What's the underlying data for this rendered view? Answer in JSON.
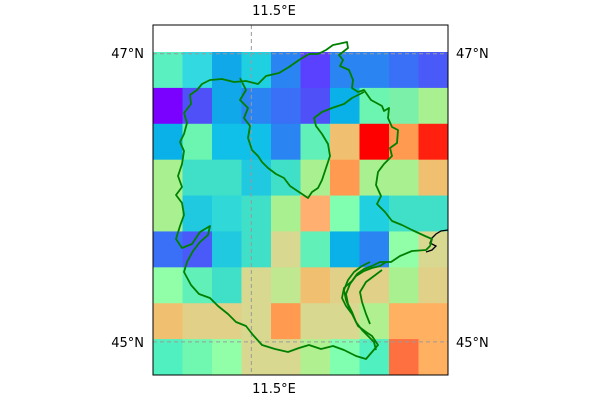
{
  "map": {
    "lon_ticks": [
      {
        "value": 11.5,
        "label": "11.5°E"
      }
    ],
    "lat_ticks": [
      {
        "value": 47,
        "label": "47°N"
      },
      {
        "value": 45,
        "label": "45°N"
      }
    ],
    "lon_range": [
      10.65,
      13.2
    ],
    "lat_range": [
      44.77,
      47.2
    ],
    "gridlines": true,
    "region_outline_color": "#008000",
    "coastline_color": "#000000",
    "colormap": "rainbow",
    "grid_cells": [
      [
        "#5bf0c0",
        "#33d9e0",
        "#10a8e8",
        "#1fd0e0",
        "#2a84f2",
        "#5a40ff",
        "#2a84f2",
        "#2a84f2",
        "#3a70f8",
        "#4a5af8"
      ],
      [
        "#7a00ff",
        "#5050f8",
        "#10a8e8",
        "#2a84f2",
        "#3a70f8",
        "#5050f8",
        "#0ab0e8",
        "#6cf5b0",
        "#7af0a8",
        "#a8f090"
      ],
      [
        "#0ab0e8",
        "#6cf5b0",
        "#10c0e8",
        "#10c0e8",
        "#2a84f2",
        "#60f0b8",
        "#f0c070",
        "#ff0000",
        "#ff9a50",
        "#ff2010"
      ],
      [
        "#a8f090",
        "#40e0c8",
        "#40e0c8",
        "#20c8e0",
        "#40e0c8",
        "#a8f090",
        "#ff9a50",
        "#a8f090",
        "#a8f090",
        "#f0c070"
      ],
      [
        "#a8f090",
        "#20c8e0",
        "#30d8d8",
        "#40e0c8",
        "#a8f090",
        "#ffb070",
        "#80ffb0",
        "#20d0e0",
        "#40e0c8",
        "#40e0c8"
      ],
      [
        "#3a70f8",
        "#4a5af8",
        "#20c8e0",
        "#40e0c8",
        "#d8d890",
        "#60f0b8",
        "#0ab0e8",
        "#2a84f2",
        "#90ffa8",
        "#d8d890"
      ],
      [
        "#90ffa8",
        "#60f0b8",
        "#40e0c8",
        "#d8d890",
        "#c0e890",
        "#f0c070",
        "#e0d088",
        "#e0d088",
        "#a8f090",
        "#e0d088"
      ],
      [
        "#f0c070",
        "#e0d088",
        "#e0d088",
        "#d8d890",
        "#ff9a50",
        "#d8d890",
        "#d8d890",
        "#b0f090",
        "#ffb060",
        "#ffb060"
      ],
      [
        "#50f0c0",
        "#70f8b0",
        "#90ffa8",
        "#d8d890",
        "#d8d890",
        "#b0f090",
        "#80ffb0",
        "#50f0c0",
        "#ff7040",
        "#ffb060"
      ]
    ]
  }
}
